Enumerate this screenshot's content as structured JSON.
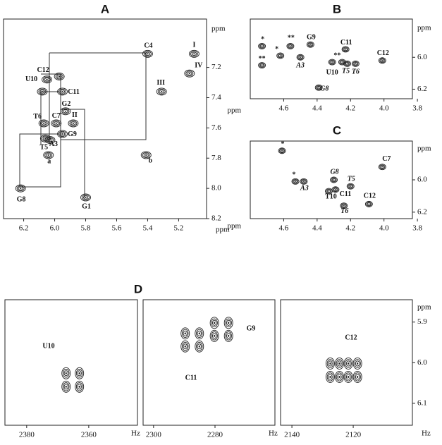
{
  "chart_data": [
    {
      "type": "contour",
      "title": "A",
      "xlabel": "ppm",
      "ylabel": "ppm",
      "xlim": [
        6.33,
        5.02
      ],
      "ylim": [
        6.88,
        8.2
      ],
      "xticks": [
        6.2,
        {
          "value": 6,
          "label": "6.0"
        },
        5.8,
        5.6,
        5.4,
        5.2
      ],
      "yticks": [
        7.2,
        7.4,
        7.6,
        7.8,
        {
          "value": 8,
          "label": "8.0"
        },
        8.2
      ],
      "x": [
        5.1,
        5.13,
        5.31,
        5.4,
        5.97,
        6.05,
        6.08,
        5.95,
        5.93,
        5.99,
        6.07,
        5.88,
        5.95,
        6.06,
        6.03,
        6.04,
        5.41,
        6.22,
        5.8
      ],
      "y": [
        7.11,
        7.24,
        7.36,
        7.11,
        7.26,
        7.28,
        7.36,
        7.36,
        7.49,
        7.57,
        7.57,
        7.57,
        7.64,
        7.67,
        7.68,
        7.78,
        7.78,
        8.0,
        8.06
      ],
      "labels": [
        "I",
        "IV",
        "III",
        "C4",
        "C12",
        "U10",
        null,
        "C11",
        "G2",
        "C7",
        "T6",
        "II",
        "G9",
        "T5",
        "A3",
        "a",
        "b",
        "G8",
        "G1"
      ]
    },
    {
      "type": "contour",
      "title": "B",
      "xlabel": "ppm",
      "ylabel": "ppm",
      "xlim": [
        4.8,
        3.83
      ],
      "ylim": [
        5.76,
        6.26
      ],
      "xticks": [
        4.6,
        4.4,
        4.2,
        {
          "value": 4,
          "label": "4.0"
        },
        3.8
      ],
      "yticks": [
        {
          "value": 6,
          "label": "6.0"
        },
        6.2
      ],
      "x": [
        4.73,
        4.73,
        4.62,
        4.56,
        4.44,
        4.23,
        4.31,
        4.25,
        4.22,
        4.17,
        4.5,
        4.01,
        4.39
      ],
      "y": [
        5.93,
        6.05,
        5.99,
        5.93,
        5.92,
        5.95,
        6.03,
        6.03,
        6.04,
        6.04,
        6.0,
        6.02,
        6.19
      ],
      "labels": [
        "*",
        "**",
        "*",
        "**",
        "G9",
        "C11",
        "U10",
        "**",
        "T5",
        "T6",
        "A3",
        "C12",
        "G8"
      ]
    },
    {
      "type": "contour",
      "title": "C",
      "xlabel": "ppm",
      "ylabel": "ppm",
      "xlim": [
        4.8,
        3.83
      ],
      "ylim": [
        5.76,
        6.24
      ],
      "xticks": [
        4.6,
        4.4,
        4.2,
        {
          "value": 4,
          "label": "4.0"
        },
        3.8
      ],
      "yticks": [
        {
          "value": 6,
          "label": "6.0"
        },
        6.2
      ],
      "x": [
        4.61,
        4.53,
        4.48,
        4.3,
        4.2,
        4.29,
        4.33,
        4.24,
        4.09,
        4.01
      ],
      "y": [
        5.82,
        6.01,
        6.01,
        6.0,
        6.04,
        6.06,
        6.07,
        6.16,
        6.15,
        5.92
      ],
      "labels": [
        "*",
        "*",
        "A3",
        "G8",
        "T5",
        "C11",
        "T10",
        "T6",
        "C12",
        "C7"
      ]
    },
    {
      "type": "contour",
      "xlabel": "Hz",
      "xlim": [
        2387.0,
        2344.3
      ],
      "ylim": [
        5.845,
        6.154
      ],
      "xticks": [
        2380,
        2360
      ],
      "x": [
        2367.3,
        2363.0,
        2367.3,
        2363.0
      ],
      "y": [
        6.026,
        6.026,
        6.059,
        6.059
      ],
      "annotations": [
        "U10"
      ]
    },
    {
      "type": "contour",
      "title": "D",
      "xlabel": "Hz",
      "xlim": [
        2303.4,
        2260.5
      ],
      "ylim": [
        5.845,
        6.154
      ],
      "xticks": [
        2300,
        2280
      ],
      "x": [
        2289.7,
        2285.1,
        2289.7,
        2285.1,
        2280.2,
        2275.6,
        2280.2,
        2275.6
      ],
      "y": [
        5.928,
        5.928,
        5.96,
        5.96,
        5.902,
        5.902,
        5.934,
        5.934
      ],
      "annotations": [
        "G9",
        "C11"
      ]
    },
    {
      "type": "contour",
      "xlabel": "Hz",
      "ylabel": "ppm",
      "xlim": [
        2143.7,
        2100.7
      ],
      "ylim": [
        5.845,
        6.154
      ],
      "xticks": [
        2140,
        2120
      ],
      "yticks": [
        5.9,
        {
          "value": 6,
          "label": "6.0"
        },
        6.1
      ],
      "x": [
        2127.5,
        2124.5,
        2121.6,
        2118.6,
        2127.5,
        2124.5,
        2121.6,
        2118.6
      ],
      "y": [
        6.002,
        6.002,
        6.002,
        6.002,
        6.035,
        6.035,
        6.035,
        6.035
      ],
      "annotations": [
        "C12"
      ]
    }
  ]
}
